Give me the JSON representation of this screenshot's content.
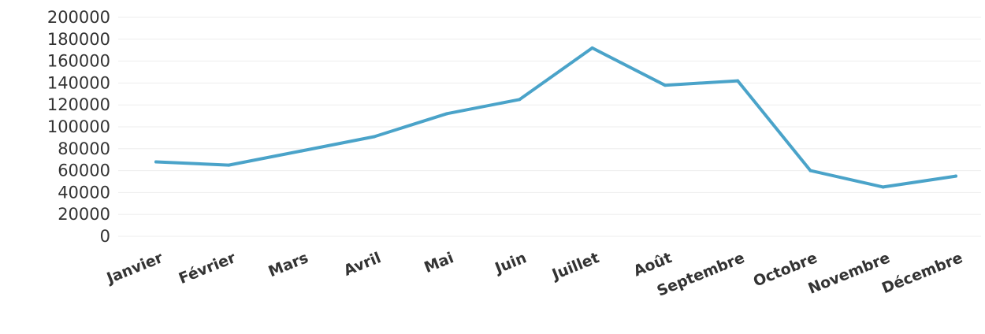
{
  "chart_data": {
    "type": "line",
    "title": "",
    "xlabel": "",
    "ylabel": "",
    "categories": [
      "Janvier",
      "Février",
      "Mars",
      "Avril",
      "Mai",
      "Juin",
      "Juillet",
      "Août",
      "Septembre",
      "Octobre",
      "Novembre",
      "Décembre"
    ],
    "series": [
      {
        "values": [
          68000,
          65000,
          78000,
          91000,
          112000,
          125000,
          172000,
          138000,
          142000,
          60000,
          45000,
          55000
        ],
        "color": "#4aa3c9"
      }
    ],
    "ylim": [
      0,
      200000
    ],
    "yticks": [
      "200000",
      "180000",
      "160000",
      "140000",
      "120000",
      "100000",
      "80000",
      "60000",
      "40000",
      "20000",
      "0"
    ],
    "grid": true,
    "legend": "none"
  }
}
